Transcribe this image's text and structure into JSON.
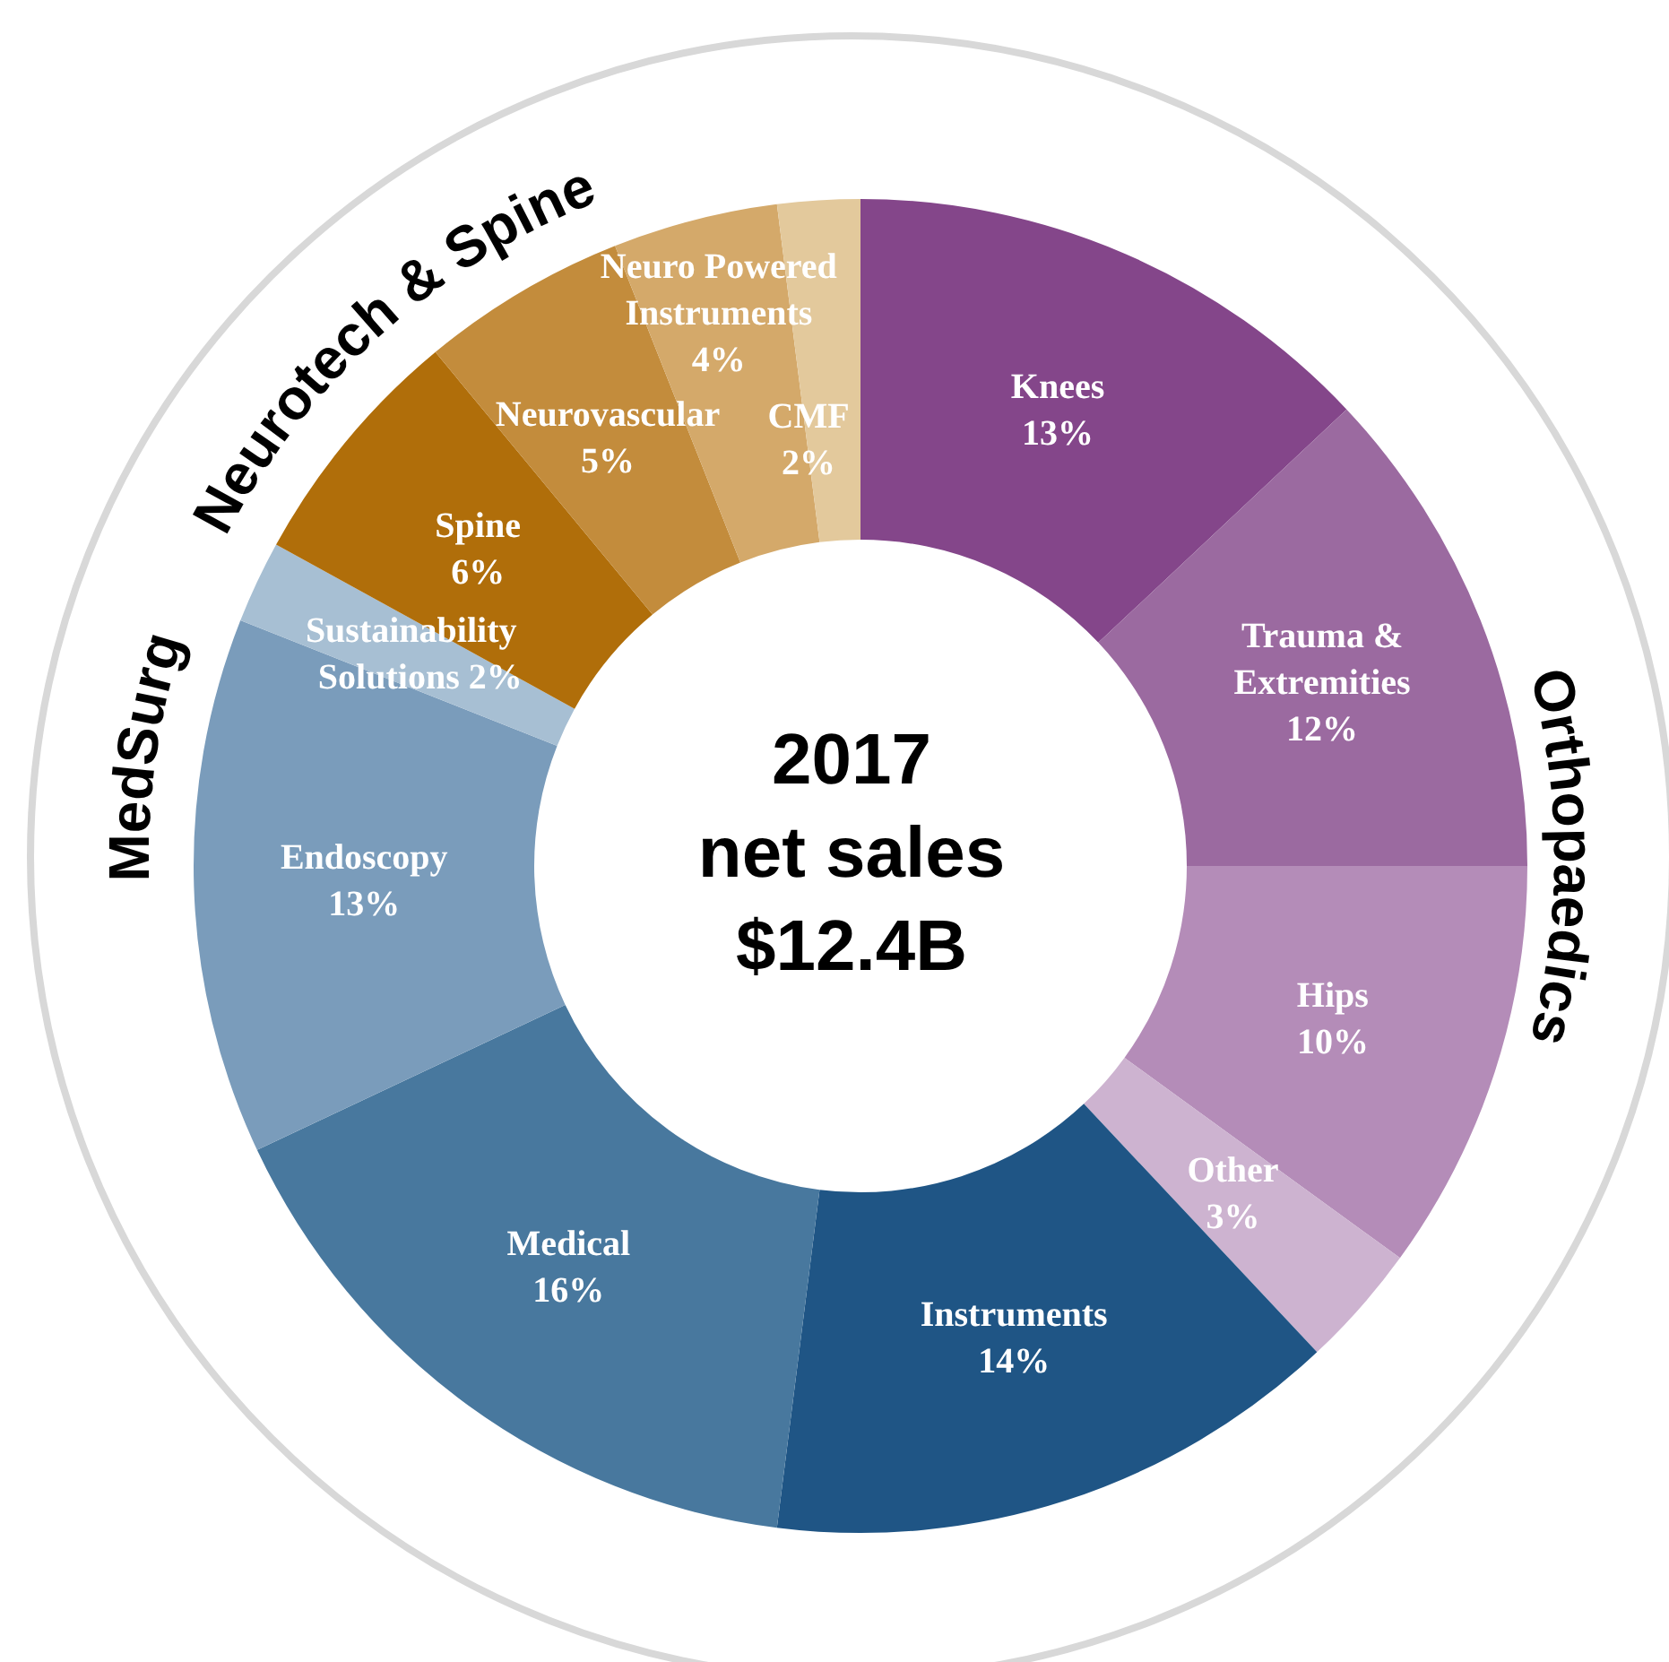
{
  "chart_data": {
    "type": "donut",
    "title": "2017 net sales",
    "subtitle": "$12.4B",
    "categories": [
      "Knees",
      "Trauma & Extremities",
      "Hips",
      "Other",
      "Instruments",
      "Medical",
      "Endoscopy",
      "Sustainability Solutions",
      "Spine",
      "Neurovascular",
      "Neuro Powered Instruments",
      "CMF"
    ],
    "values": [
      13,
      12,
      10,
      3,
      14,
      16,
      13,
      2,
      6,
      5,
      4,
      2
    ],
    "value_labels": [
      "13%",
      "12%",
      "10%",
      "3%",
      "14%",
      "16%",
      "13%",
      "2%",
      "6%",
      "5%",
      "4%",
      "2%"
    ],
    "colors": [
      "#84468a",
      "#9b6aa0",
      "#b48cb8",
      "#cdb3d0",
      "#1f5585",
      "#48789e",
      "#7a9cbb",
      "#a7bfd3",
      "#b06e0a",
      "#c38c3c",
      "#d4a96a",
      "#e3c99c"
    ],
    "annotations": [
      "Orthopaedics",
      "MedSurg",
      "Neurotech & Spine"
    ],
    "legend": false
  }
}
